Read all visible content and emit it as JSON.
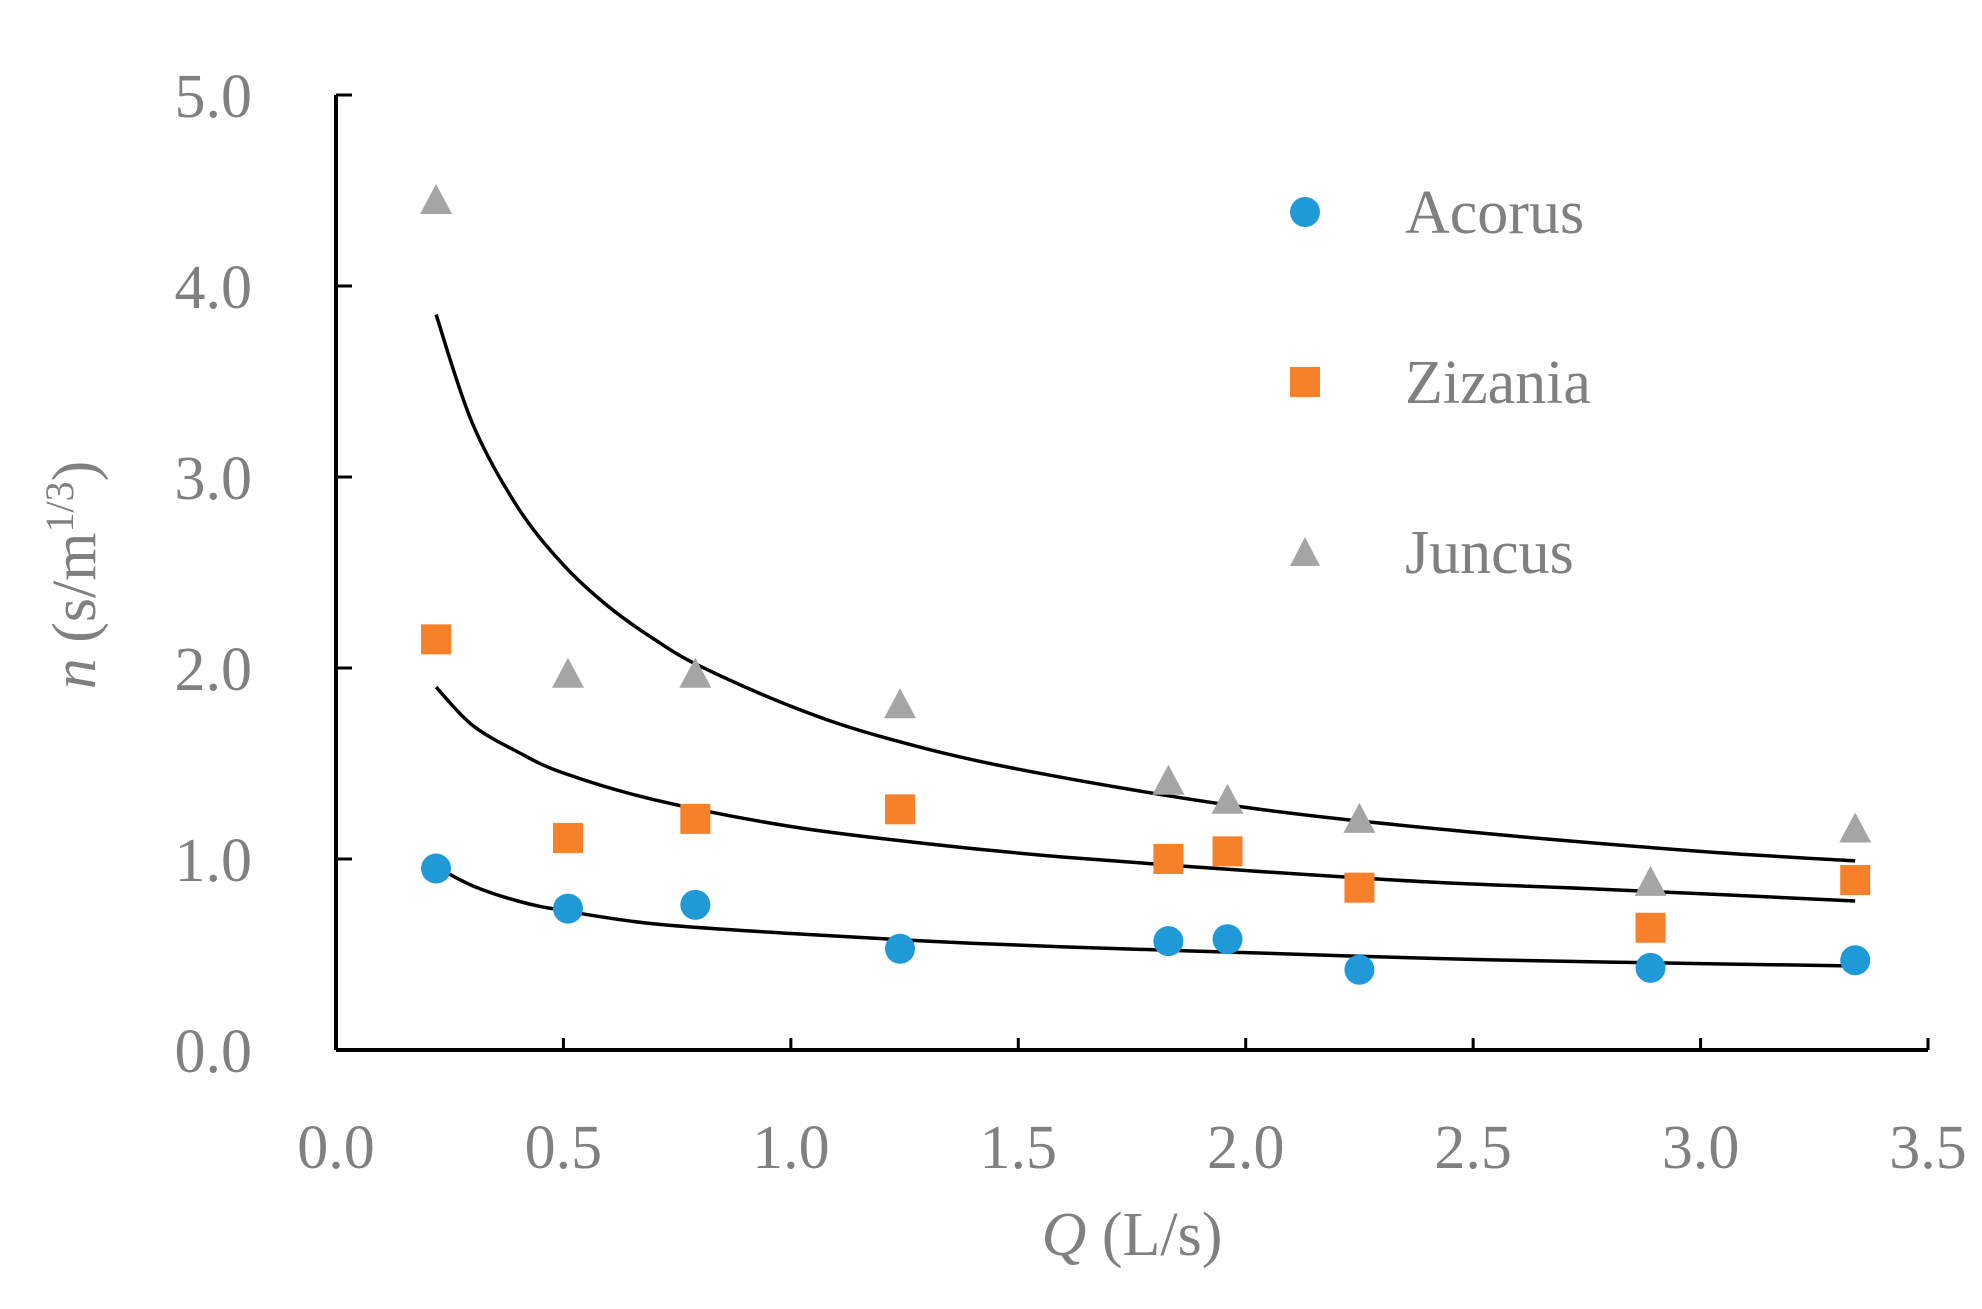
{
  "chart_data": {
    "type": "scatter",
    "xlabel": {
      "italic": "Q",
      "rest": " (L/s)"
    },
    "ylabel": {
      "italic": "n",
      "rest": " (s/m",
      "sup": "1/3",
      "close": ")"
    },
    "xlim": [
      0,
      3.5
    ],
    "ylim": [
      0,
      5
    ],
    "xticks": [
      "0.0",
      "0.5",
      "1.0",
      "1.5",
      "2.0",
      "2.5",
      "3.0",
      "3.5"
    ],
    "yticks": [
      "0.0",
      "1.0",
      "2.0",
      "3.0",
      "4.0",
      "5.0"
    ],
    "grid": false,
    "legend_position": "top-right",
    "series": [
      {
        "name": "Acorus",
        "marker": "circle",
        "color": "#1f9ad6",
        "x": [
          0.22,
          0.51,
          0.79,
          1.24,
          1.83,
          1.96,
          2.25,
          2.89,
          3.34
        ],
        "y": [
          0.95,
          0.74,
          0.76,
          0.53,
          0.57,
          0.58,
          0.42,
          0.43,
          0.47
        ],
        "fit": {
          "x": [
            0.22,
            0.3,
            0.4,
            0.5,
            0.7,
            1.0,
            1.3,
            1.6,
            2.0,
            2.4,
            2.8,
            3.34
          ],
          "y": [
            0.96,
            0.86,
            0.78,
            0.73,
            0.66,
            0.61,
            0.57,
            0.54,
            0.51,
            0.48,
            0.46,
            0.44
          ]
        }
      },
      {
        "name": "Zizania",
        "marker": "square",
        "color": "#f7802a",
        "x": [
          0.22,
          0.51,
          0.79,
          1.24,
          1.83,
          1.96,
          2.25,
          2.89,
          3.34
        ],
        "y": [
          2.15,
          1.11,
          1.21,
          1.26,
          1.0,
          1.04,
          0.85,
          0.64,
          0.89
        ],
        "fit": {
          "x": [
            0.22,
            0.3,
            0.4,
            0.5,
            0.7,
            1.0,
            1.3,
            1.6,
            2.0,
            2.4,
            2.8,
            3.34
          ],
          "y": [
            1.9,
            1.7,
            1.56,
            1.45,
            1.31,
            1.17,
            1.08,
            1.01,
            0.94,
            0.88,
            0.84,
            0.78
          ]
        }
      },
      {
        "name": "Juncus",
        "marker": "triangle",
        "color": "#a5a5a5",
        "x": [
          0.22,
          0.51,
          0.79,
          1.24,
          1.83,
          1.96,
          2.25,
          2.89,
          3.34
        ],
        "y": [
          4.45,
          1.97,
          1.97,
          1.81,
          1.41,
          1.31,
          1.21,
          0.88,
          1.16
        ],
        "fit": {
          "x": [
            0.22,
            0.3,
            0.4,
            0.5,
            0.6,
            0.7,
            0.8,
            1.0,
            1.2,
            1.5,
            2.0,
            2.5,
            3.0,
            3.34
          ],
          "y": [
            3.85,
            3.28,
            2.84,
            2.54,
            2.32,
            2.15,
            2.01,
            1.8,
            1.64,
            1.47,
            1.27,
            1.14,
            1.04,
            0.99
          ]
        }
      }
    ]
  }
}
